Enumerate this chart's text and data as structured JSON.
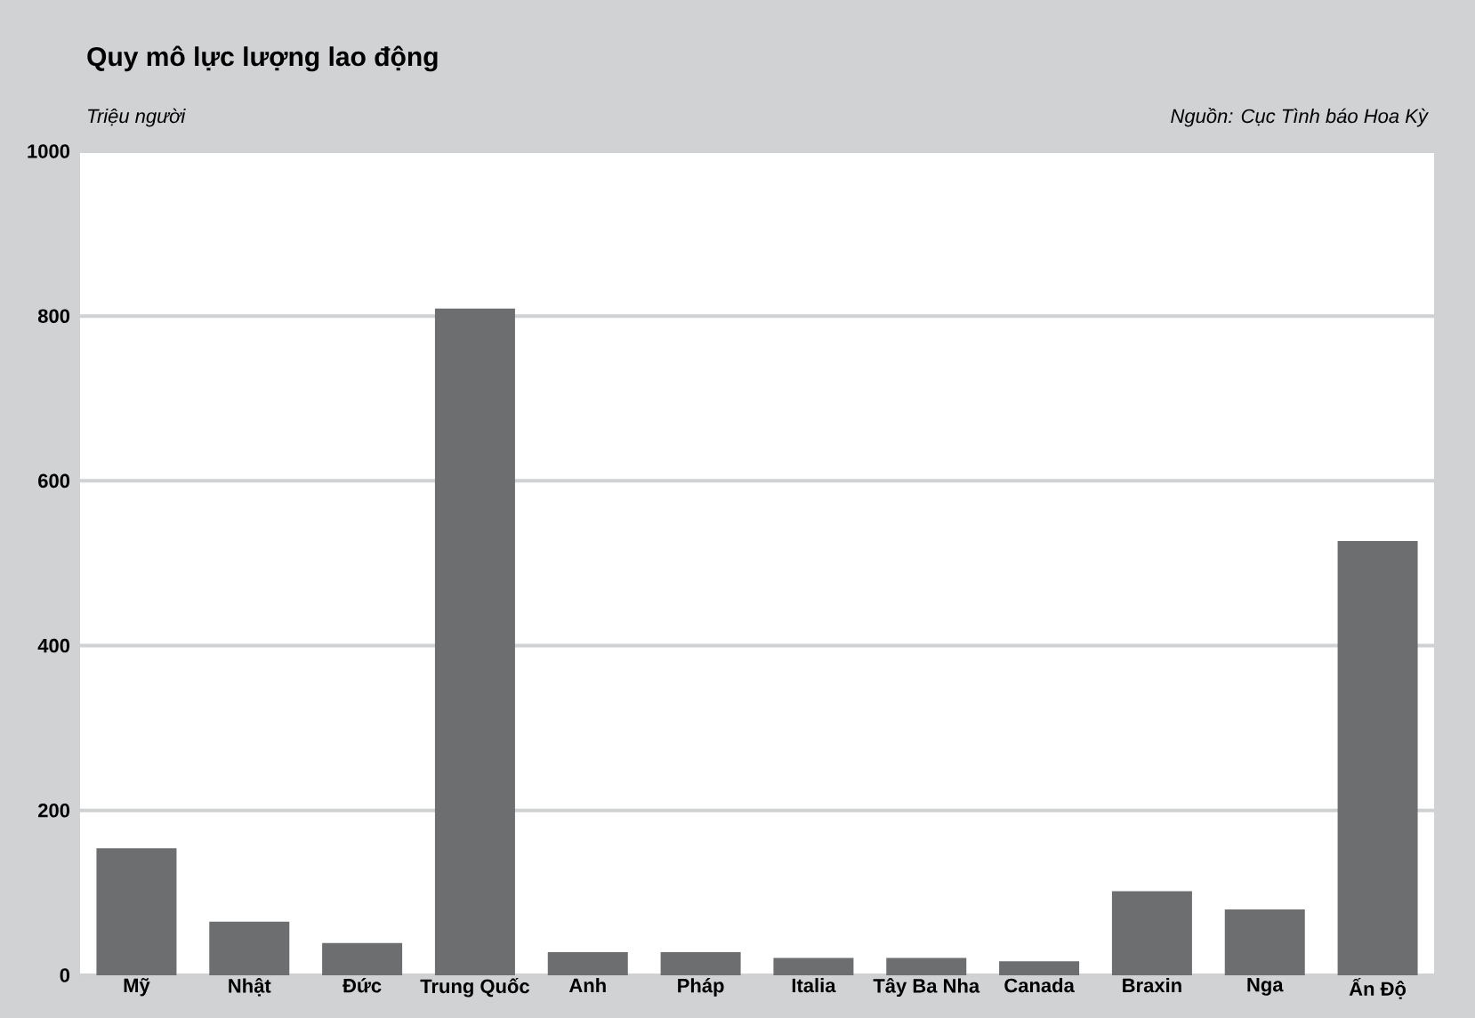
{
  "chart_data": {
    "type": "bar",
    "title": "Quy mô lực lượng lao động",
    "ylabel": "Triệu người",
    "annotations": [
      "Nguồn: Cục Tình báo Hoa Kỳ"
    ],
    "categories": [
      "Mỹ",
      "Nhật",
      "Đức",
      "Trung Quốc",
      "Anh",
      "Pháp",
      "Italia",
      "Tây Ba Nha",
      "Canada",
      "Braxin",
      "Nga",
      "Ấn Độ"
    ],
    "values": [
      154,
      65,
      39,
      809,
      28,
      28,
      21,
      21,
      17,
      102,
      80,
      527
    ],
    "color": "#6d6e70",
    "ylim": [
      0,
      1000
    ],
    "yticks": [
      0,
      200,
      400,
      600,
      800,
      1000
    ],
    "grid": "y"
  }
}
